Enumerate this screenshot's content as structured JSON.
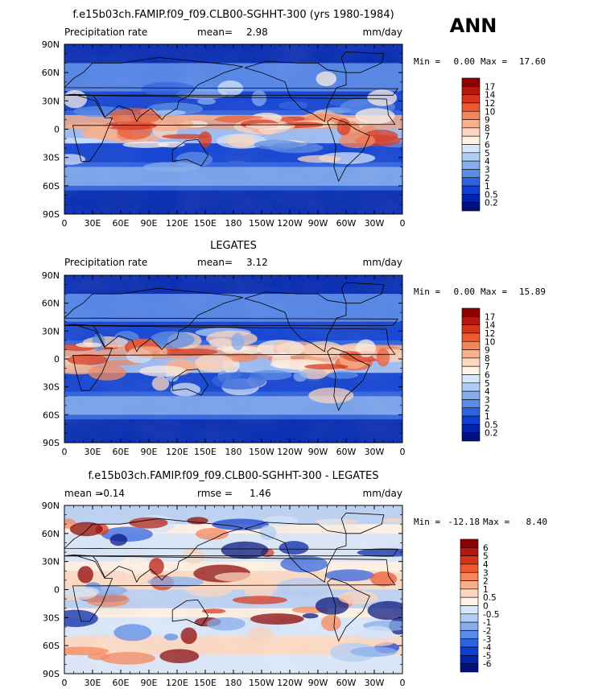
{
  "season": "ANN",
  "units": "mm/day",
  "x_ticks": [
    "0",
    "30E",
    "60E",
    "90E",
    "120E",
    "150E",
    "180",
    "150W",
    "120W",
    "90W",
    "60W",
    "30W",
    "0"
  ],
  "y_ticks": [
    "90N",
    "60N",
    "30N",
    "0",
    "30S",
    "60S",
    "90S"
  ],
  "panels": [
    {
      "id": "model",
      "title": "f.e15b03ch.FAMIP.f09_f09.CLB00-SGHHT-300 (yrs 1980-1984)",
      "left_label": "Precipitation rate",
      "center_label": "mean=",
      "center_value": "2.98",
      "units": "mm/day",
      "min_label": "Min =",
      "min_value": "0.00",
      "max_label": "Max =",
      "max_value": "17.60"
    },
    {
      "id": "obs",
      "title": "LEGATES",
      "left_label": "Precipitation rate",
      "center_label": "mean=",
      "center_value": "3.12",
      "units": "mm/day",
      "min_label": "Min =",
      "min_value": "0.00",
      "max_label": "Max =",
      "max_value": "15.89"
    },
    {
      "id": "diff",
      "title": "f.e15b03ch.FAMIP.f09_f09.CLB00-SGHHT-300 - LEGATES",
      "left_label": "mean =",
      "left_value": "-0.14",
      "center_label": "rmse =",
      "center_value": "1.46",
      "units": "mm/day",
      "min_label": "Min =",
      "min_value": "-12.18",
      "max_label": "Max =",
      "max_value": "8.40"
    }
  ],
  "colorbars": {
    "precip": {
      "labels": [
        "17",
        "14",
        "12",
        "10",
        "9",
        "8",
        "7",
        "6",
        "5",
        "4",
        "3",
        "2",
        "1",
        "0.5",
        "0.2"
      ],
      "colors": [
        "#8b0000",
        "#b5160e",
        "#d8341b",
        "#ee5a2f",
        "#f7855a",
        "#fbb08b",
        "#fdd7bf",
        "#fff2e6",
        "#d6e6fb",
        "#b1cdf6",
        "#85aeef",
        "#5a8ce7",
        "#2f62e0",
        "#0f3fd0",
        "#0023aa",
        "#00107c"
      ]
    },
    "diff": {
      "labels": [
        "6",
        "5",
        "4",
        "3",
        "2",
        "1",
        "0.5",
        "0",
        "-0.5",
        "-1",
        "-2",
        "-3",
        "-4",
        "-5",
        "-6"
      ],
      "colors": [
        "#8b0000",
        "#b5160e",
        "#d8341b",
        "#ee5a2f",
        "#f7855a",
        "#fbb08b",
        "#fdd7bf",
        "#fff2e6",
        "#d6e6fb",
        "#b1cdf6",
        "#85aeef",
        "#5a8ce7",
        "#2f62e0",
        "#0f3fd0",
        "#0023aa",
        "#00107c"
      ]
    }
  },
  "chart_data": [
    {
      "type": "heatmap",
      "title": "f.e15b03ch.FAMIP.f09_f09.CLB00-SGHHT-300 (yrs 1980-1984)",
      "variable": "Precipitation rate",
      "units": "mm/day",
      "mean": 2.98,
      "min": 0.0,
      "max": 17.6,
      "xlim": [
        0,
        360
      ],
      "ylim": [
        -90,
        90
      ],
      "color_levels": [
        0.2,
        0.5,
        1,
        2,
        3,
        4,
        5,
        6,
        7,
        8,
        9,
        10,
        12,
        14,
        17
      ]
    },
    {
      "type": "heatmap",
      "title": "LEGATES",
      "variable": "Precipitation rate",
      "units": "mm/day",
      "mean": 3.12,
      "min": 0.0,
      "max": 15.89,
      "xlim": [
        0,
        360
      ],
      "ylim": [
        -90,
        90
      ],
      "color_levels": [
        0.2,
        0.5,
        1,
        2,
        3,
        4,
        5,
        6,
        7,
        8,
        9,
        10,
        12,
        14,
        17
      ]
    },
    {
      "type": "heatmap",
      "title": "f.e15b03ch.FAMIP.f09_f09.CLB00-SGHHT-300 - LEGATES",
      "units": "mm/day",
      "mean": -0.14,
      "rmse": 1.46,
      "min": -12.18,
      "max": 8.4,
      "xlim": [
        0,
        360
      ],
      "ylim": [
        -90,
        90
      ],
      "color_levels": [
        -6,
        -5,
        -4,
        -3,
        -2,
        -1,
        -0.5,
        0,
        0.5,
        1,
        2,
        3,
        4,
        5,
        6
      ]
    }
  ]
}
